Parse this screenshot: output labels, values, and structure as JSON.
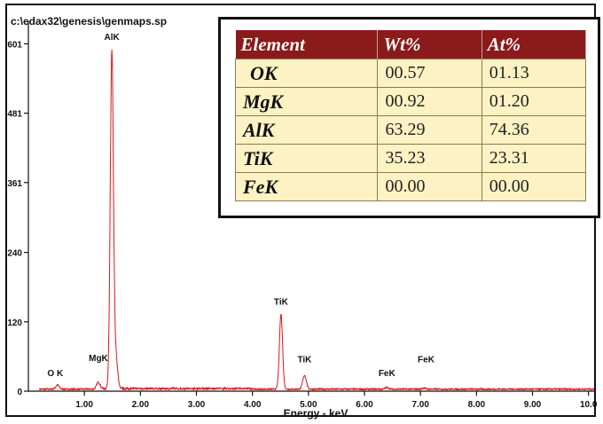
{
  "window_title": "c:\\edax32\\genesis\\genmaps.sp",
  "chart_data": {
    "type": "line",
    "xlabel": "Energy - keV",
    "ylabel": "",
    "xlim": [
      0,
      10.1
    ],
    "ylim": [
      0,
      640
    ],
    "x_ticks": [
      1,
      2,
      3,
      4,
      5,
      6,
      7,
      8,
      9,
      10
    ],
    "x_tick_labels": [
      "1.00",
      "2.00",
      "3.00",
      "4.00",
      "5.00",
      "6.00",
      "7.00",
      "8.00",
      "9.00",
      "10.0"
    ],
    "y_ticks": [
      0,
      120,
      240,
      361,
      481,
      601
    ],
    "y_tick_labels": [
      "0",
      "120",
      "240",
      "361",
      "481",
      "601"
    ],
    "color": "#e4141b",
    "grid": false,
    "peaks": [
      {
        "element": "O",
        "energy": 0.52,
        "height": 7
      },
      {
        "element": "Mg",
        "energy": 1.25,
        "height": 12
      },
      {
        "element": "Al",
        "energy": 1.49,
        "height": 580
      },
      {
        "element": "Al-Kb",
        "energy": 1.56,
        "height": 55
      },
      {
        "element": "Ti",
        "energy": 4.51,
        "height": 130
      },
      {
        "element": "Ti-Kb",
        "energy": 4.93,
        "height": 24
      },
      {
        "element": "Fe",
        "energy": 6.4,
        "height": 3
      },
      {
        "element": "Fe-Kb",
        "energy": 7.06,
        "height": 2
      }
    ],
    "annotations": [
      {
        "text": "AlK",
        "x": 1.49,
        "y": 608
      },
      {
        "text": "O K",
        "x": 0.48,
        "y": 26
      },
      {
        "text": "MgK",
        "x": 1.25,
        "y": 52
      },
      {
        "text": "TiK",
        "x": 4.51,
        "y": 150
      },
      {
        "text": "TiK",
        "x": 4.93,
        "y": 50
      },
      {
        "text": "FeK",
        "x": 6.4,
        "y": 26
      },
      {
        "text": "FeK",
        "x": 7.1,
        "y": 50
      }
    ]
  },
  "table": {
    "headers": [
      "Element",
      "Wt%",
      "At%"
    ],
    "rows": [
      [
        "OK",
        "00.57",
        "01.13"
      ],
      [
        "MgK",
        "00.92",
        "01.20"
      ],
      [
        "AlK",
        "63.29",
        "74.36"
      ],
      [
        "TiK",
        "35.23",
        "23.31"
      ],
      [
        "FeK",
        "00.00",
        "00.00"
      ]
    ],
    "header_color": "#8b1a1a",
    "cell_color": "#fcf2c3"
  }
}
